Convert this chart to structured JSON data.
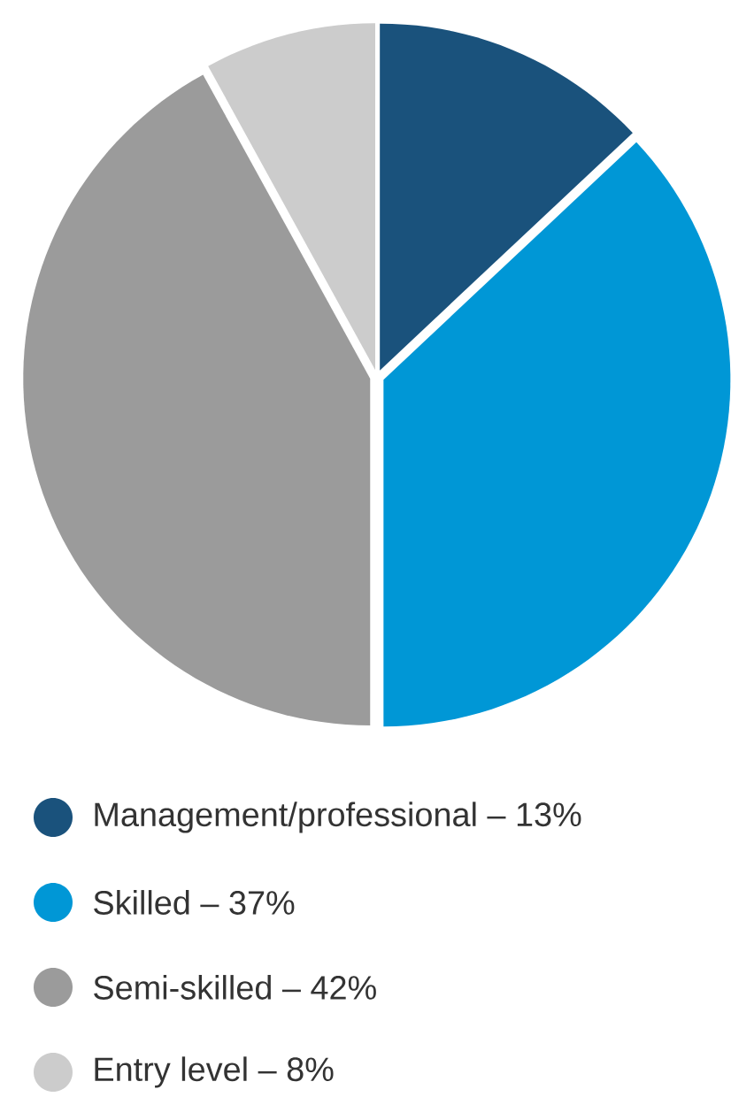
{
  "chart_data": {
    "type": "pie",
    "categories": [
      "Management/professional – 13%",
      "Skilled – 37%",
      "Semi-skilled – 42%",
      "Entry level – 8%"
    ],
    "values": [
      13,
      37,
      42,
      8
    ],
    "colors": [
      "#1a527c",
      "#0097d6",
      "#9b9b9b",
      "#cccccc"
    ],
    "legend": "bottom"
  }
}
